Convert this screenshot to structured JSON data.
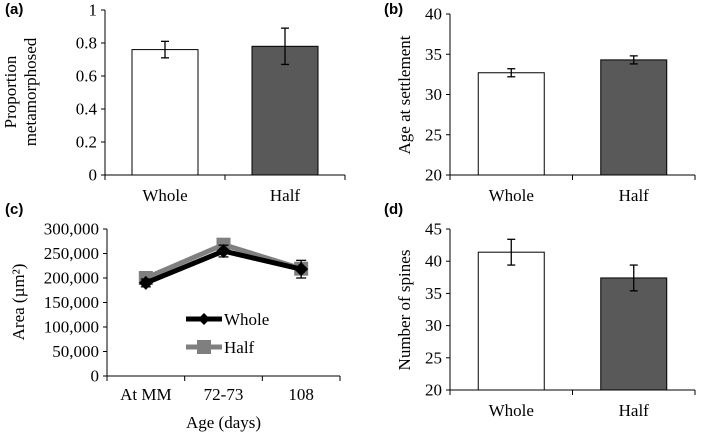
{
  "chart_data": [
    {
      "panel": "(a)",
      "type": "bar",
      "categories": [
        "Whole",
        "Half"
      ],
      "values": [
        0.76,
        0.78
      ],
      "errors": [
        0.05,
        0.11
      ],
      "ylabel": [
        "Proportion",
        "metamorphosed"
      ],
      "xlabel": "",
      "ylim": [
        0,
        1
      ],
      "yticks": [
        0,
        0.2,
        0.4,
        0.6,
        0.8,
        1
      ],
      "ytick_labels": [
        "0",
        "0.2",
        "0.4",
        "0.6",
        "0.8",
        "1"
      ],
      "bar_colors": [
        "#ffffff",
        "#595959"
      ]
    },
    {
      "panel": "(b)",
      "type": "bar",
      "categories": [
        "Whole",
        "Half"
      ],
      "values": [
        32.7,
        34.3
      ],
      "errors": [
        0.5,
        0.5
      ],
      "ylabel": [
        "Age at settlement"
      ],
      "xlabel": "",
      "ylim": [
        20,
        40
      ],
      "yticks": [
        20,
        25,
        30,
        35,
        40
      ],
      "ytick_labels": [
        "20",
        "25",
        "30",
        "35",
        "40"
      ],
      "bar_colors": [
        "#ffffff",
        "#595959"
      ]
    },
    {
      "panel": "(c)",
      "type": "line",
      "categories": [
        "At MM",
        "72-73",
        "108"
      ],
      "series": [
        {
          "name": "Whole",
          "values": [
            190000,
            255000,
            218000
          ],
          "errors": [
            8000,
            12000,
            18000
          ],
          "color": "#000000",
          "marker": "diamond"
        },
        {
          "name": "Half",
          "values": [
            200000,
            268000,
            219000
          ],
          "errors": [
            6000,
            8000,
            12000
          ],
          "color": "#7f7f7f",
          "marker": "square"
        }
      ],
      "ylabel": [
        "Area (µm²)"
      ],
      "xlabel": "Age (days)",
      "ylim": [
        0,
        300000
      ],
      "yticks": [
        0,
        50000,
        100000,
        150000,
        200000,
        250000,
        300000
      ],
      "ytick_labels": [
        "0",
        "50,000",
        "100,000",
        "150,000",
        "200,000",
        "250,000",
        "300,000"
      ]
    },
    {
      "panel": "(d)",
      "type": "bar",
      "categories": [
        "Whole",
        "Half"
      ],
      "values": [
        41.4,
        37.4
      ],
      "errors": [
        2.0,
        2.0
      ],
      "ylabel": [
        "Number of spines"
      ],
      "xlabel": "",
      "ylim": [
        20,
        45
      ],
      "yticks": [
        20,
        25,
        30,
        35,
        40,
        45
      ],
      "ytick_labels": [
        "20",
        "25",
        "30",
        "35",
        "40",
        "45"
      ],
      "bar_colors": [
        "#ffffff",
        "#595959"
      ]
    }
  ]
}
